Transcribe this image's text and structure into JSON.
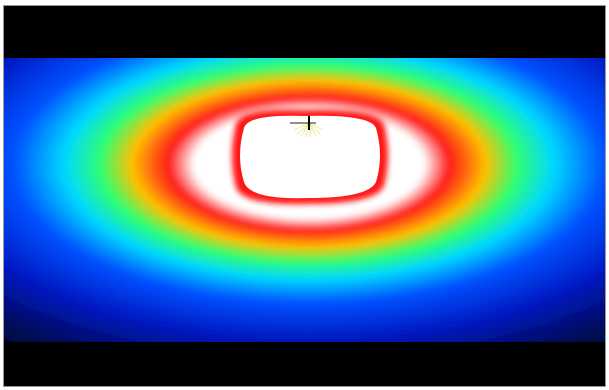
{
  "view": {
    "background": "#000000",
    "border_color": "#9a9a9a",
    "gradient_stops": [
      "#ffffff",
      "#ff1a1a",
      "#ffd000",
      "#20ff80",
      "#00e0ff",
      "#0060ff",
      "#0020d0",
      "#000840",
      "#000000"
    ],
    "icon": "light-source-icon"
  }
}
